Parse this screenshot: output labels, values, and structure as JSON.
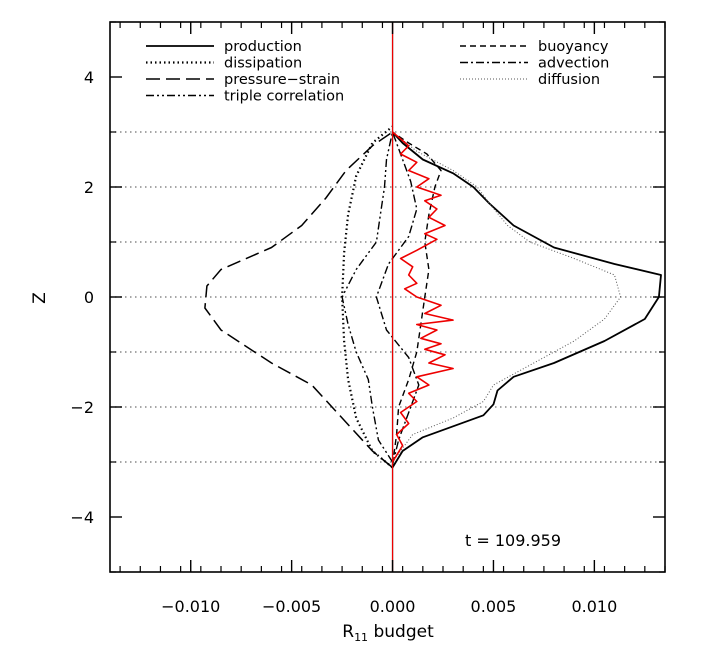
{
  "chart_data": {
    "type": "line",
    "title": "",
    "xlabel_main": "R",
    "xlabel_sub": "11",
    "xlabel_rest": " budget",
    "ylabel": "Z",
    "xlim": [
      -0.014,
      0.0135
    ],
    "ylim": [
      -5,
      5
    ],
    "x_ticks": [
      -0.01,
      -0.005,
      0.0,
      0.005,
      0.01
    ],
    "x_tick_labels": [
      "−0.010",
      "−0.005",
      "0.000",
      "0.005",
      "0.010"
    ],
    "y_ticks": [
      -4,
      -2,
      0,
      2,
      4
    ],
    "y_tick_labels": [
      "−4",
      "−2",
      "0",
      "2",
      "4"
    ],
    "horizontal_reference_lines": [
      -3,
      -2,
      -1,
      0,
      1,
      2,
      3
    ],
    "annotation": "t  =  109.959",
    "legend_placement": "top",
    "legend_left": [
      {
        "label": "production",
        "dash": "solid"
      },
      {
        "label": "dissipation",
        "dash": "dotted"
      },
      {
        "label": "pressure−strain",
        "dash": "longdash"
      },
      {
        "label": "triple correlation",
        "dash": "dashdotdot"
      }
    ],
    "legend_right": [
      {
        "label": "buoyancy",
        "dash": "dashed"
      },
      {
        "label": "advection",
        "dash": "dashdot"
      },
      {
        "label": "diffusion",
        "dash": "thindotted"
      }
    ],
    "series": [
      {
        "name": "production",
        "color": "#000000",
        "points": [
          [
            0,
            -3.1
          ],
          [
            0.0005,
            -2.8
          ],
          [
            0.0015,
            -2.55
          ],
          [
            0.003,
            -2.35
          ],
          [
            0.0045,
            -2.15
          ],
          [
            0.005,
            -1.95
          ],
          [
            0.0052,
            -1.7
          ],
          [
            0.006,
            -1.45
          ],
          [
            0.008,
            -1.2
          ],
          [
            0.0105,
            -0.8
          ],
          [
            0.0125,
            -0.4
          ],
          [
            0.0132,
            0.0
          ],
          [
            0.0133,
            0.4
          ],
          [
            0.011,
            0.6
          ],
          [
            0.008,
            0.9
          ],
          [
            0.006,
            1.3
          ],
          [
            0.0048,
            1.7
          ],
          [
            0.004,
            2.0
          ],
          [
            0.003,
            2.25
          ],
          [
            0.0015,
            2.5
          ],
          [
            0.0005,
            2.8
          ],
          [
            0,
            3.0
          ]
        ]
      },
      {
        "name": "dissipation",
        "color": "#000000",
        "points": [
          [
            0,
            -3.1
          ],
          [
            -0.001,
            -2.8
          ],
          [
            -0.0018,
            -2.2
          ],
          [
            -0.0022,
            -1.5
          ],
          [
            -0.0024,
            -0.8
          ],
          [
            -0.0025,
            0.0
          ],
          [
            -0.0024,
            0.8
          ],
          [
            -0.0022,
            1.5
          ],
          [
            -0.0018,
            2.2
          ],
          [
            -0.001,
            2.8
          ],
          [
            0,
            3.1
          ]
        ]
      },
      {
        "name": "pressure-strain",
        "color": "#000000",
        "points": [
          [
            0,
            -3.1
          ],
          [
            -0.001,
            -2.8
          ],
          [
            -0.002,
            -2.4
          ],
          [
            -0.003,
            -2.0
          ],
          [
            -0.004,
            -1.6
          ],
          [
            -0.006,
            -1.2
          ],
          [
            -0.0085,
            -0.6
          ],
          [
            -0.0093,
            -0.2
          ],
          [
            -0.0092,
            0.2
          ],
          [
            -0.0085,
            0.5
          ],
          [
            -0.006,
            0.9
          ],
          [
            -0.0045,
            1.3
          ],
          [
            -0.0033,
            1.8
          ],
          [
            -0.0023,
            2.3
          ],
          [
            -0.001,
            2.75
          ],
          [
            0,
            3.0
          ]
        ]
      },
      {
        "name": "triple correlation",
        "color": "#000000",
        "points": [
          [
            0,
            -3.0
          ],
          [
            -0.0007,
            -2.6
          ],
          [
            -0.001,
            -2.0
          ],
          [
            -0.0012,
            -1.5
          ],
          [
            -0.0018,
            -1.0
          ],
          [
            -0.0022,
            -0.5
          ],
          [
            -0.0025,
            0.0
          ],
          [
            -0.0018,
            0.5
          ],
          [
            -0.0008,
            1.0
          ],
          [
            -0.0006,
            1.5
          ],
          [
            -0.0004,
            2.0
          ],
          [
            -0.0003,
            2.5
          ],
          [
            0,
            3.0
          ]
        ]
      },
      {
        "name": "buoyancy",
        "color": "#000000",
        "points": [
          [
            0,
            -3.05
          ],
          [
            0.0002,
            -2.5
          ],
          [
            0.0003,
            -2.0
          ],
          [
            0.0008,
            -1.5
          ],
          [
            0.0012,
            -1.0
          ],
          [
            0.0014,
            -0.5
          ],
          [
            0.0016,
            0.0
          ],
          [
            0.0018,
            0.5
          ],
          [
            0.0016,
            1.0
          ],
          [
            0.0018,
            1.5
          ],
          [
            0.0021,
            2.0
          ],
          [
            0.0024,
            2.3
          ],
          [
            0.0017,
            2.6
          ],
          [
            0.0008,
            2.8
          ],
          [
            0,
            3.0
          ]
        ]
      },
      {
        "name": "advection",
        "color": "#000000",
        "points": [
          [
            0,
            -3.05
          ],
          [
            0.0003,
            -2.6
          ],
          [
            0.0008,
            -2.1
          ],
          [
            0.0013,
            -1.6
          ],
          [
            0.0008,
            -1.1
          ],
          [
            -0.0003,
            -0.6
          ],
          [
            -0.0008,
            0.0
          ],
          [
            -0.0002,
            0.6
          ],
          [
            0.0008,
            1.1
          ],
          [
            0.0012,
            1.6
          ],
          [
            0.0009,
            2.1
          ],
          [
            0.0004,
            2.6
          ],
          [
            0,
            3.0
          ]
        ]
      },
      {
        "name": "diffusion",
        "color": "#555555",
        "points": [
          [
            0,
            -3.0
          ],
          [
            0.001,
            -2.5
          ],
          [
            0.003,
            -2.2
          ],
          [
            0.0045,
            -1.9
          ],
          [
            0.005,
            -1.6
          ],
          [
            0.007,
            -1.2
          ],
          [
            0.009,
            -0.8
          ],
          [
            0.0105,
            -0.4
          ],
          [
            0.0113,
            0.0
          ],
          [
            0.011,
            0.4
          ],
          [
            0.009,
            0.7
          ],
          [
            0.0068,
            1.0
          ],
          [
            0.0057,
            1.3
          ],
          [
            0.0048,
            1.7
          ],
          [
            0.0042,
            2.0
          ],
          [
            0.003,
            2.3
          ],
          [
            0.0012,
            2.65
          ],
          [
            0,
            3.0
          ]
        ]
      },
      {
        "name": "",
        "color": "#ee0000",
        "points": [
          [
            0,
            -3.0
          ],
          [
            0.0005,
            -2.7
          ],
          [
            0.0002,
            -2.5
          ],
          [
            0.0008,
            -2.3
          ],
          [
            0.0004,
            -2.1
          ],
          [
            0.0012,
            -1.9
          ],
          [
            0.0008,
            -1.75
          ],
          [
            0.0018,
            -1.6
          ],
          [
            0.0012,
            -1.45
          ],
          [
            0.003,
            -1.3
          ],
          [
            0.0018,
            -1.2
          ],
          [
            0.0026,
            -1.05
          ],
          [
            0.0016,
            -0.95
          ],
          [
            0.0024,
            -0.85
          ],
          [
            0.0014,
            -0.75
          ],
          [
            0.0022,
            -0.6
          ],
          [
            0.0012,
            -0.5
          ],
          [
            0.003,
            -0.42
          ],
          [
            0.0016,
            -0.3
          ],
          [
            0.0024,
            -0.15
          ],
          [
            0.0012,
            0.0
          ],
          [
            0.0006,
            0.15
          ],
          [
            0.0012,
            0.25
          ],
          [
            0.0008,
            0.4
          ],
          [
            0.001,
            0.55
          ],
          [
            0.0004,
            0.7
          ],
          [
            0.0012,
            0.85
          ],
          [
            0.0022,
            1.05
          ],
          [
            0.0016,
            1.15
          ],
          [
            0.0026,
            1.3
          ],
          [
            0.0018,
            1.45
          ],
          [
            0.0022,
            1.6
          ],
          [
            0.0016,
            1.75
          ],
          [
            0.0024,
            1.85
          ],
          [
            0.0012,
            2.0
          ],
          [
            0.0018,
            2.15
          ],
          [
            0.0008,
            2.3
          ],
          [
            0.0012,
            2.45
          ],
          [
            0.0004,
            2.6
          ],
          [
            0.0008,
            2.75
          ],
          [
            0,
            3.0
          ]
        ]
      }
    ]
  }
}
